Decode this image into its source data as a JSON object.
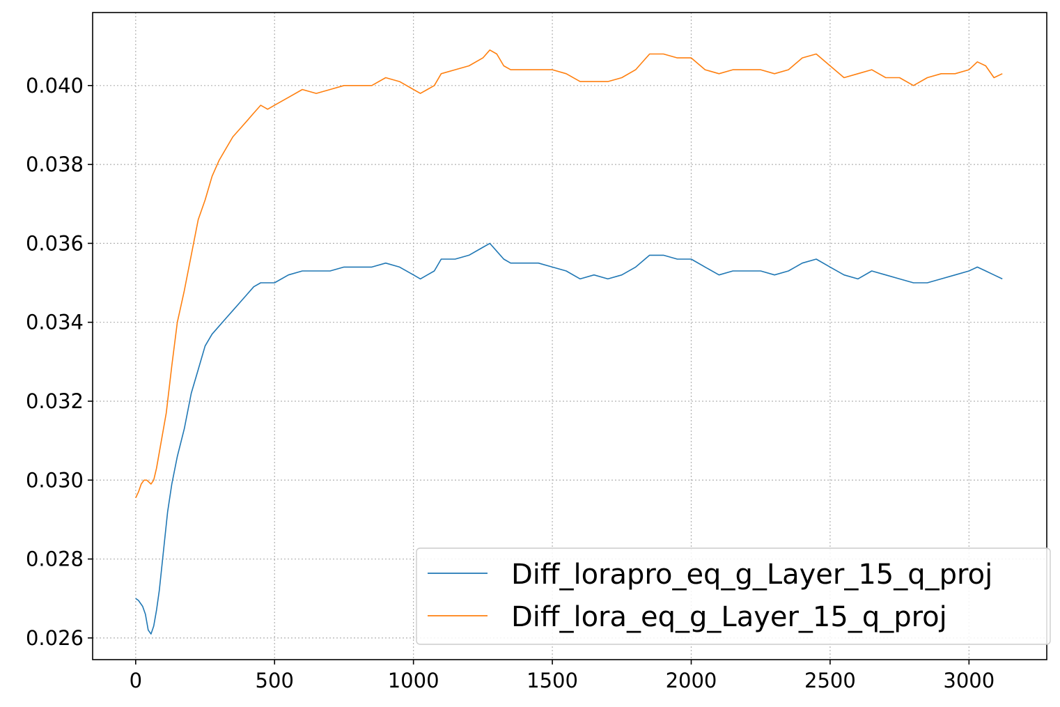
{
  "chart_data": {
    "type": "line",
    "title": "",
    "xlabel": "",
    "ylabel": "",
    "xlim": [
      -155,
      3280
    ],
    "ylim": [
      0.02545,
      0.04185
    ],
    "x_ticks": [
      0,
      500,
      1000,
      1500,
      2000,
      2500,
      3000
    ],
    "x_tick_labels": [
      "0",
      "500",
      "1000",
      "1500",
      "2000",
      "2500",
      "3000"
    ],
    "y_ticks": [
      0.026,
      0.028,
      0.03,
      0.032,
      0.034,
      0.036,
      0.038,
      0.04
    ],
    "y_tick_labels": [
      "0.026",
      "0.028",
      "0.030",
      "0.032",
      "0.034",
      "0.036",
      "0.038",
      "0.040"
    ],
    "grid": true,
    "legend_position": "lower-right",
    "series": [
      {
        "name": "Diff_lorapro_eq_g_Layer_15_q_proj",
        "color": "#1f77b4",
        "x": [
          0,
          10,
          25,
          35,
          45,
          55,
          65,
          75,
          85,
          100,
          115,
          130,
          150,
          175,
          200,
          225,
          250,
          275,
          300,
          325,
          350,
          375,
          400,
          425,
          450,
          475,
          500,
          550,
          600,
          650,
          700,
          750,
          800,
          850,
          900,
          950,
          1000,
          1025,
          1050,
          1075,
          1100,
          1150,
          1200,
          1250,
          1275,
          1300,
          1325,
          1350,
          1400,
          1450,
          1500,
          1550,
          1600,
          1650,
          1700,
          1750,
          1800,
          1850,
          1900,
          1950,
          2000,
          2050,
          2100,
          2150,
          2200,
          2250,
          2300,
          2350,
          2400,
          2450,
          2500,
          2550,
          2600,
          2650,
          2700,
          2750,
          2800,
          2850,
          2900,
          2950,
          3000,
          3030,
          3060,
          3090,
          3120
        ],
        "y": [
          0.027,
          0.02695,
          0.0268,
          0.0266,
          0.0262,
          0.0261,
          0.0263,
          0.0267,
          0.0272,
          0.0282,
          0.0292,
          0.0299,
          0.0306,
          0.0313,
          0.0322,
          0.0328,
          0.0334,
          0.0337,
          0.0339,
          0.0341,
          0.0343,
          0.0345,
          0.0347,
          0.0349,
          0.035,
          0.035,
          0.035,
          0.0352,
          0.0353,
          0.0353,
          0.0353,
          0.0354,
          0.0354,
          0.0354,
          0.0355,
          0.0354,
          0.0352,
          0.0351,
          0.0352,
          0.0353,
          0.0356,
          0.0356,
          0.0357,
          0.0359,
          0.036,
          0.0358,
          0.0356,
          0.0355,
          0.0355,
          0.0355,
          0.0354,
          0.0353,
          0.0351,
          0.0352,
          0.0351,
          0.0352,
          0.0354,
          0.0357,
          0.0357,
          0.0356,
          0.0356,
          0.0354,
          0.0352,
          0.0353,
          0.0353,
          0.0353,
          0.0352,
          0.0353,
          0.0355,
          0.0356,
          0.0354,
          0.0352,
          0.0351,
          0.0353,
          0.0352,
          0.0351,
          0.035,
          0.035,
          0.0351,
          0.0352,
          0.0353,
          0.0354,
          0.0353,
          0.0352,
          0.0351
        ]
      },
      {
        "name": "Diff_lora_eq_g_Layer_15_q_proj",
        "color": "#ff7f0e",
        "x": [
          0,
          10,
          20,
          30,
          40,
          55,
          65,
          75,
          90,
          110,
          130,
          150,
          175,
          200,
          225,
          250,
          275,
          300,
          325,
          350,
          375,
          400,
          425,
          450,
          475,
          500,
          550,
          600,
          650,
          700,
          750,
          800,
          850,
          900,
          950,
          1000,
          1025,
          1050,
          1075,
          1100,
          1150,
          1200,
          1250,
          1275,
          1300,
          1325,
          1350,
          1400,
          1450,
          1500,
          1550,
          1600,
          1650,
          1700,
          1750,
          1800,
          1850,
          1900,
          1950,
          2000,
          2050,
          2100,
          2150,
          2200,
          2250,
          2300,
          2350,
          2400,
          2450,
          2500,
          2550,
          2600,
          2650,
          2700,
          2750,
          2800,
          2850,
          2900,
          2950,
          3000,
          3030,
          3060,
          3090,
          3120
        ],
        "y": [
          0.02955,
          0.0297,
          0.0299,
          0.03,
          0.03,
          0.0299,
          0.03,
          0.0303,
          0.0309,
          0.0317,
          0.0329,
          0.034,
          0.0348,
          0.0357,
          0.0366,
          0.0371,
          0.0377,
          0.0381,
          0.0384,
          0.0387,
          0.0389,
          0.0391,
          0.0393,
          0.0395,
          0.0394,
          0.0395,
          0.0397,
          0.0399,
          0.0398,
          0.0399,
          0.04,
          0.04,
          0.04,
          0.0402,
          0.0401,
          0.0399,
          0.0398,
          0.0399,
          0.04,
          0.0403,
          0.0404,
          0.0405,
          0.0407,
          0.0409,
          0.0408,
          0.0405,
          0.0404,
          0.0404,
          0.0404,
          0.0404,
          0.0403,
          0.0401,
          0.0401,
          0.0401,
          0.0402,
          0.0404,
          0.0408,
          0.0408,
          0.0407,
          0.0407,
          0.0404,
          0.0403,
          0.0404,
          0.0404,
          0.0404,
          0.0403,
          0.0404,
          0.0407,
          0.0408,
          0.0405,
          0.0402,
          0.0403,
          0.0404,
          0.0402,
          0.0402,
          0.04,
          0.0402,
          0.0403,
          0.0403,
          0.0404,
          0.0406,
          0.0405,
          0.0402,
          0.0403
        ]
      }
    ]
  }
}
